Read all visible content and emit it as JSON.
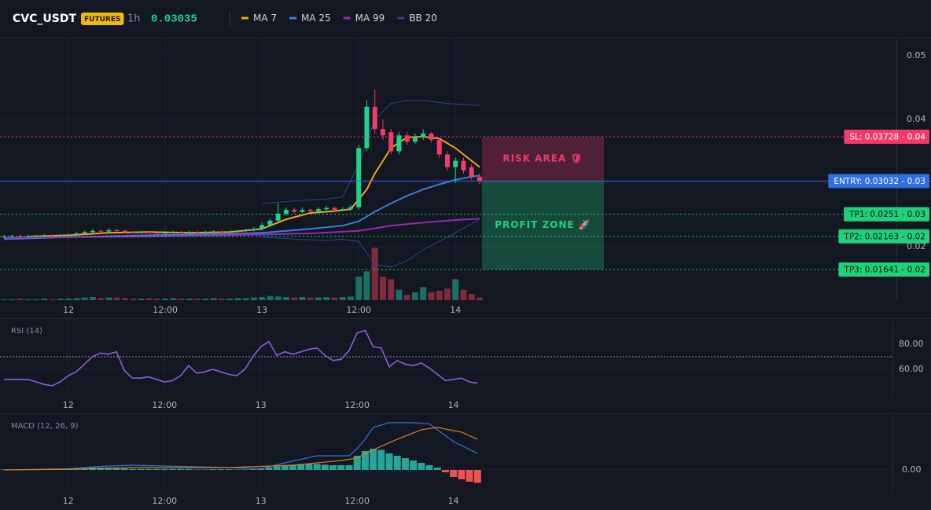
{
  "header": {
    "symbol": "CVC_USDT",
    "badge": "FUTURES",
    "interval": "1h",
    "price": 0.03035
  },
  "chart_data": [
    {
      "type": "candlestick",
      "xlim": [
        -8.5,
        102.7
      ],
      "ylim": [
        0.0116,
        0.05284
      ],
      "xticks": [
        {
          "value": 0,
          "label": "12"
        },
        {
          "value": 12,
          "label": "12:00"
        },
        {
          "value": 24,
          "label": "13"
        },
        {
          "value": 36,
          "label": "12:00"
        },
        {
          "value": 48,
          "label": "14"
        }
      ],
      "yticks": [
        0.05,
        0.04,
        0.03,
        0.02
      ],
      "grid": true,
      "x": [
        -8,
        -7,
        -6,
        -5,
        -4,
        -3,
        -2,
        -1,
        0,
        1,
        2,
        3,
        4,
        5,
        6,
        7,
        8,
        9,
        10,
        11,
        12,
        13,
        14,
        15,
        16,
        17,
        18,
        19,
        20,
        21,
        22,
        23,
        24,
        25,
        26,
        27,
        28,
        29,
        30,
        31,
        32,
        33,
        34,
        35,
        36,
        37,
        38,
        39,
        40,
        41,
        42,
        43,
        44,
        45,
        46,
        47,
        48,
        49,
        50,
        51
      ],
      "open": [
        0.0215,
        0.0216,
        0.0217,
        0.0216,
        0.0217,
        0.0217,
        0.0218,
        0.0217,
        0.0218,
        0.0219,
        0.0221,
        0.0223,
        0.0225,
        0.0224,
        0.0226,
        0.0225,
        0.0223,
        0.0222,
        0.0223,
        0.0222,
        0.0221,
        0.0222,
        0.0223,
        0.0222,
        0.0223,
        0.0222,
        0.0223,
        0.0224,
        0.0223,
        0.0224,
        0.0225,
        0.0226,
        0.0228,
        0.0234,
        0.0241,
        0.0252,
        0.0258,
        0.0255,
        0.0258,
        0.0256,
        0.0259,
        0.0261,
        0.0258,
        0.0259,
        0.0262,
        0.0355,
        0.042,
        0.0385,
        0.038,
        0.035,
        0.0375,
        0.0365,
        0.0372,
        0.0378,
        0.0368,
        0.0345,
        0.0325,
        0.0335,
        0.0325,
        0.031
      ],
      "high": [
        0.0218,
        0.0219,
        0.0219,
        0.0219,
        0.0219,
        0.022,
        0.022,
        0.022,
        0.0221,
        0.0223,
        0.0225,
        0.0228,
        0.0227,
        0.0229,
        0.0228,
        0.0227,
        0.0225,
        0.0225,
        0.0225,
        0.0224,
        0.0224,
        0.0225,
        0.0225,
        0.0225,
        0.0225,
        0.0225,
        0.0226,
        0.0226,
        0.0226,
        0.0227,
        0.0228,
        0.0231,
        0.0238,
        0.0245,
        0.0268,
        0.0262,
        0.0261,
        0.0262,
        0.026,
        0.0262,
        0.0264,
        0.0263,
        0.0262,
        0.0266,
        0.036,
        0.043,
        0.0447,
        0.04,
        0.0385,
        0.038,
        0.038,
        0.0378,
        0.0385,
        0.038,
        0.037,
        0.035,
        0.034,
        0.034,
        0.033,
        0.0315
      ],
      "low": [
        0.0213,
        0.0214,
        0.0214,
        0.0214,
        0.0215,
        0.0215,
        0.0215,
        0.0215,
        0.0216,
        0.0217,
        0.0219,
        0.0221,
        0.0222,
        0.0222,
        0.0223,
        0.0221,
        0.022,
        0.022,
        0.022,
        0.0219,
        0.0219,
        0.022,
        0.022,
        0.022,
        0.022,
        0.022,
        0.0221,
        0.0221,
        0.0221,
        0.0222,
        0.0223,
        0.0224,
        0.0226,
        0.0232,
        0.0239,
        0.0249,
        0.0252,
        0.0253,
        0.0254,
        0.0254,
        0.0257,
        0.0256,
        0.0256,
        0.0257,
        0.0258,
        0.035,
        0.0378,
        0.0368,
        0.0345,
        0.0345,
        0.036,
        0.0362,
        0.0368,
        0.0364,
        0.034,
        0.032,
        0.03,
        0.0315,
        0.0305,
        0.0298
      ],
      "close": [
        0.0216,
        0.0217,
        0.0216,
        0.0217,
        0.0217,
        0.0218,
        0.0217,
        0.0218,
        0.0219,
        0.0221,
        0.0223,
        0.0225,
        0.0224,
        0.0226,
        0.0225,
        0.0223,
        0.0222,
        0.0223,
        0.0222,
        0.0221,
        0.0222,
        0.0223,
        0.0222,
        0.0223,
        0.0222,
        0.0223,
        0.0224,
        0.0223,
        0.0224,
        0.0225,
        0.0226,
        0.0228,
        0.0234,
        0.0241,
        0.0252,
        0.0258,
        0.0255,
        0.0258,
        0.0256,
        0.0259,
        0.0261,
        0.0258,
        0.0259,
        0.0262,
        0.0355,
        0.042,
        0.0385,
        0.0375,
        0.035,
        0.0375,
        0.0365,
        0.0372,
        0.0378,
        0.0368,
        0.0345,
        0.0325,
        0.0335,
        0.032,
        0.031,
        0.03035
      ],
      "volume": [
        2,
        2,
        3,
        2,
        2,
        3,
        2,
        3,
        3,
        4,
        5,
        6,
        4,
        5,
        5,
        4,
        3,
        3,
        4,
        3,
        3,
        4,
        3,
        3,
        3,
        3,
        4,
        3,
        3,
        4,
        4,
        5,
        6,
        8,
        7,
        6,
        5,
        6,
        5,
        5,
        6,
        5,
        6,
        7,
        45,
        55,
        100,
        45,
        40,
        20,
        10,
        15,
        25,
        15,
        18,
        22,
        40,
        20,
        12,
        5
      ],
      "volume_lim": [
        0,
        150
      ],
      "up_color": "#1fd38a",
      "down_color": "#f23b6a",
      "up_volume_color": "#1b6f63",
      "down_volume_color": "#7e2b3a",
      "overlays": [
        {
          "name": "MA 7",
          "color": "#f7a21b",
          "x": [
            -5,
            0,
            5,
            10,
            15,
            20,
            24,
            27,
            30,
            33,
            35,
            37,
            38,
            39,
            40,
            42,
            44,
            46,
            48,
            50,
            51
          ],
          "values": [
            0.0216,
            0.0218,
            0.0222,
            0.0223,
            0.0222,
            0.0223,
            0.0228,
            0.0243,
            0.0253,
            0.0256,
            0.0259,
            0.029,
            0.0315,
            0.0335,
            0.0355,
            0.0372,
            0.0373,
            0.037,
            0.0355,
            0.0335,
            0.0325
          ]
        },
        {
          "name": "MA 25",
          "color": "#3b7ddd",
          "x": [
            -8,
            0,
            10,
            20,
            24,
            30,
            34,
            36,
            38,
            40,
            42,
            44,
            46,
            48,
            50,
            51
          ],
          "values": [
            0.0212,
            0.0215,
            0.0218,
            0.022,
            0.0222,
            0.0228,
            0.0233,
            0.024,
            0.0255,
            0.0268,
            0.028,
            0.029,
            0.0298,
            0.0305,
            0.031,
            0.0312
          ]
        },
        {
          "name": "MA 99",
          "color": "#9c27b0",
          "x": [
            -8,
            0,
            10,
            20,
            30,
            36,
            40,
            44,
            48,
            51
          ],
          "values": [
            0.0214,
            0.0215,
            0.0216,
            0.0218,
            0.0221,
            0.0225,
            0.0233,
            0.0238,
            0.0242,
            0.0244
          ]
        },
        {
          "name": "BB 20",
          "color": "#2c4590",
          "x": [
            24,
            28,
            32,
            34,
            36,
            38,
            40,
            42,
            44,
            47,
            51
          ],
          "values": [
            0.0268,
            0.0272,
            0.0275,
            0.0278,
            0.033,
            0.04,
            0.0425,
            0.043,
            0.043,
            0.0425,
            0.0422
          ],
          "lower": [
            0.0215,
            0.0212,
            0.021,
            0.0212,
            0.0208,
            0.0172,
            0.0168,
            0.0178,
            0.0195,
            0.0215,
            0.0243
          ]
        }
      ],
      "levels": [
        {
          "label": "SL: 0.03728 - 0.04",
          "value": 0.03728,
          "color": "#f23b6a",
          "style": "dotted"
        },
        {
          "label": "ENTRY: 0.03032 - 0.03",
          "value": 0.03032,
          "color": "#2f6fe0",
          "style": "solid"
        },
        {
          "label": "TP1: 0.0251 - 0.03",
          "value": 0.0251,
          "color": "#1fd17a",
          "style": "dotted"
        },
        {
          "label": "TP2: 0.02163 - 0.02",
          "value": 0.02163,
          "color": "#1fd17a",
          "style": "dotted"
        },
        {
          "label": "TP3: 0.01641 - 0.02",
          "value": 0.01641,
          "color": "#1fd17a",
          "style": "dotted"
        }
      ],
      "zones": [
        {
          "label": "RISK AREA 🛡",
          "color": "#f23b6a"
        },
        {
          "label": "PROFIT ZONE 🚀",
          "color": "#1fd17a"
        }
      ]
    },
    {
      "type": "line",
      "title": "RSI (14)",
      "color": "#8e5cd9",
      "xlim": [
        -8.5,
        102.7
      ],
      "ylim": [
        39.4,
        98.75
      ],
      "xticks": [
        {
          "value": 0,
          "label": "12"
        },
        {
          "value": 12,
          "label": "12:00"
        },
        {
          "value": 24,
          "label": "13"
        },
        {
          "value": 36,
          "label": "12:00"
        },
        {
          "value": 48,
          "label": "14"
        }
      ],
      "yticks": [
        {
          "value": 60,
          "label": "60.00"
        },
        {
          "value": 80,
          "label": "80.00"
        }
      ],
      "ref_line": 70,
      "x": [
        -8,
        -7,
        -6,
        -5,
        -4,
        -3,
        -2,
        -1,
        0,
        1,
        2,
        3,
        4,
        5,
        6,
        7,
        8,
        9,
        10,
        11,
        12,
        13,
        14,
        15,
        16,
        17,
        18,
        19,
        20,
        21,
        22,
        23,
        24,
        25,
        26,
        27,
        28,
        29,
        30,
        31,
        32,
        33,
        34,
        35,
        36,
        37,
        38,
        39,
        40,
        41,
        42,
        43,
        44,
        45,
        46,
        47,
        48,
        49,
        50,
        51
      ],
      "values": [
        52,
        52,
        52,
        52,
        50,
        48,
        47,
        50,
        55,
        58,
        64,
        70,
        73,
        72,
        74,
        59,
        53,
        53,
        54,
        52,
        50,
        51,
        55,
        63,
        57,
        58,
        60,
        58,
        56,
        55,
        60,
        70,
        78,
        82,
        71,
        74,
        72,
        74,
        76,
        77,
        71,
        67,
        68,
        75,
        89,
        91,
        78,
        77,
        62,
        67,
        64,
        63,
        65,
        61,
        56,
        51,
        52,
        53,
        50,
        49
      ]
    },
    {
      "type": "macd",
      "title": "MACD (12, 26, 9)",
      "xlim": [
        -8.5,
        102.7
      ],
      "ylim": [
        -0.0009,
        0.00233
      ],
      "xticks": [
        {
          "value": 0,
          "label": "12"
        },
        {
          "value": 12,
          "label": "12:00"
        },
        {
          "value": 24,
          "label": "13"
        },
        {
          "value": 36,
          "label": "12:00"
        },
        {
          "value": 48,
          "label": "14"
        }
      ],
      "yticks": [
        {
          "value": 0,
          "label": "0.00"
        }
      ],
      "lines": [
        {
          "color": "#3a6fd8",
          "x": [
            -8,
            0,
            4,
            8,
            14,
            20,
            24,
            27,
            31,
            35,
            36,
            37,
            38,
            40,
            43,
            45,
            46,
            48,
            51
          ],
          "values": [
            0,
            5e-05,
            0.00015,
            0.0002,
            0.00015,
            0.0001,
            5e-05,
            0.0003,
            0.0006,
            0.0006,
            0.0009,
            0.0013,
            0.0018,
            0.002,
            0.002,
            0.00195,
            0.0017,
            0.0012,
            0.0007
          ]
        },
        {
          "color": "#e07b20",
          "x": [
            -8,
            0,
            8,
            20,
            28,
            34,
            36,
            37,
            39,
            41,
            44,
            46,
            49,
            51
          ],
          "values": [
            0,
            3e-05,
            0.0001,
            0.0001,
            0.0002,
            0.0004,
            0.0005,
            0.0007,
            0.001,
            0.0013,
            0.0017,
            0.0018,
            0.0016,
            0.0013
          ]
        }
      ],
      "histogram": {
        "up_color": "#26a69a",
        "down_color": "#ef5350",
        "x": [
          -8,
          -7,
          -6,
          -5,
          -4,
          -3,
          -2,
          -1,
          0,
          1,
          2,
          3,
          4,
          5,
          6,
          7,
          8,
          9,
          10,
          11,
          12,
          13,
          14,
          15,
          16,
          17,
          18,
          19,
          20,
          21,
          22,
          23,
          24,
          25,
          26,
          27,
          28,
          29,
          30,
          31,
          32,
          33,
          34,
          35,
          36,
          37,
          38,
          39,
          40,
          41,
          42,
          43,
          44,
          45,
          46,
          47,
          48,
          49,
          50,
          51
        ],
        "values": [
          2e-05,
          2e-05,
          2e-05,
          2e-05,
          2e-05,
          2e-05,
          2e-05,
          2e-05,
          4e-05,
          6e-05,
          8e-05,
          0.0001,
          0.0001,
          0.0001,
          8e-05,
          6e-05,
          4e-05,
          4e-05,
          4e-05,
          4e-05,
          4e-05,
          4e-05,
          4e-05,
          4e-05,
          2e-05,
          2e-05,
          3e-05,
          3e-05,
          3e-05,
          2e-05,
          2e-05,
          3e-05,
          5e-05,
          0.0001,
          0.00015,
          0.0002,
          0.00022,
          0.00025,
          0.00025,
          0.00025,
          0.00022,
          0.0002,
          0.0002,
          0.0002,
          0.0006,
          0.0008,
          0.0009,
          0.00085,
          0.0007,
          0.0006,
          0.0005,
          0.0004,
          0.0003,
          0.0002,
          0.0001,
          -0.0001,
          -0.0003,
          -0.0004,
          -0.0005,
          -0.00055
        ]
      }
    }
  ]
}
